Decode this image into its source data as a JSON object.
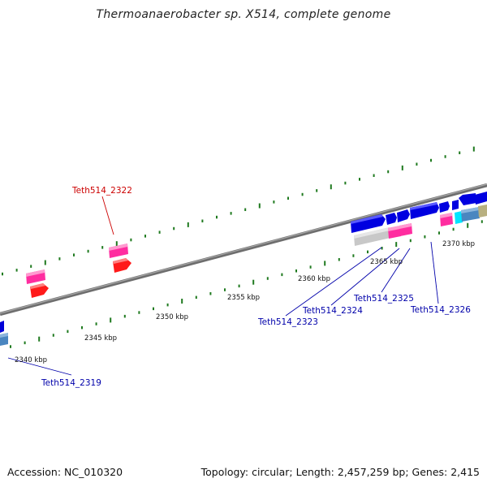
{
  "title": "Thermoanaerobacter sp. X514, complete genome",
  "footer": {
    "accession": "Accession: NC_010320",
    "summary": "Topology: circular; Length: 2,457,259 bp; Genes: 2,415"
  },
  "colors": {
    "backbone": "#7a7a7a",
    "ticks": "#1f7a1f",
    "gene_blue": "#0000e0",
    "gene_magenta": "#ff2da0",
    "gene_red": "#ff1a1a",
    "gene_steel": "#4a86c0",
    "gene_gray": "#c8c8c8",
    "gene_cyan": "#00e5ff",
    "gene_tan": "#b8b080",
    "label_red": "#cc0000",
    "label_blue": "#0000aa"
  },
  "scale_labels": [
    "2340 kbp",
    "2345 kbp",
    "2350 kbp",
    "2355 kbp",
    "2360 kbp",
    "2365 kbp",
    "2370 kbp"
  ],
  "gene_labels": [
    {
      "text": "Teth514_2322",
      "color": "red"
    },
    {
      "text": "Teth514_2319",
      "color": "blue"
    },
    {
      "text": "Teth514_2323",
      "color": "blue"
    },
    {
      "text": "Teth514_2324",
      "color": "blue"
    },
    {
      "text": "Teth514_2325",
      "color": "blue"
    },
    {
      "text": "Teth514_2326",
      "color": "blue"
    }
  ]
}
